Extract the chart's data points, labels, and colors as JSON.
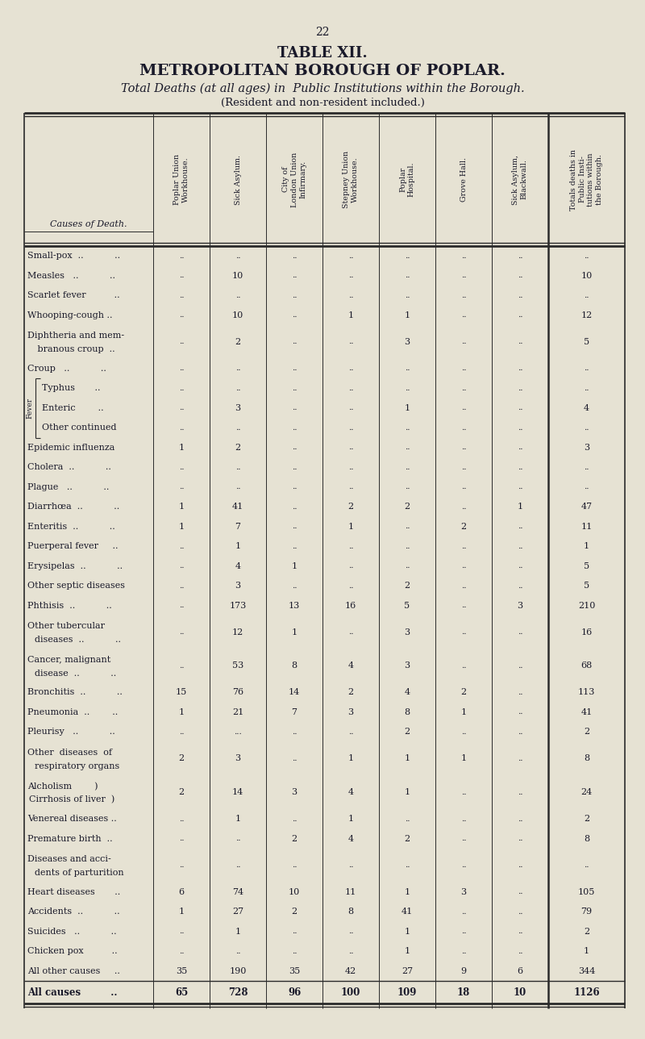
{
  "page_number": "22",
  "title1": "TABLE XII.",
  "title2": "METROPOLITAN BOROUGH OF POPLAR.",
  "title3": "Total Deaths (at all ages) in  Public Institutions within the Borough.",
  "title4": "(Resident and non-resident included.)",
  "col_headers": [
    "Poplar Union\nWorkhouse.",
    "Sick Asylum.",
    "City of\nLondon Union\nInfirmary.",
    "Stepney Union\nWorkhouse.",
    "Poplar\nHospital.",
    "Grove Hall.",
    "Sick Asylum,\nBlackwall.",
    "Totals deaths in\nPublic Insti-\ntutions within\nthe Borough."
  ],
  "row_label_col": "Causes of Death.",
  "rows": [
    {
      "label": "Small-pox  ..           ..",
      "label2": "",
      "values": [
        "..",
        "..",
        "..",
        "..",
        "..",
        "..",
        "..",
        ".."
      ]
    },
    {
      "label": "Measles   ..           ..",
      "label2": "",
      "values": [
        "..",
        "10",
        "..",
        "..",
        "..",
        "..",
        "..",
        "10"
      ]
    },
    {
      "label": "Scarlet fever          ..",
      "label2": "",
      "values": [
        "..",
        "..",
        "..",
        "..",
        "..",
        "..",
        "..",
        ".."
      ]
    },
    {
      "label": "Whooping-cough ..",
      "label2": "",
      "values": [
        "..",
        "10",
        "..",
        "1",
        "1",
        "..",
        "..",
        "12"
      ]
    },
    {
      "label": "Diphtheria and mem-",
      "label2": "   branous croup  ..",
      "values": [
        "..",
        "2",
        "..",
        "..",
        "3",
        "..",
        "..",
        "5"
      ],
      "tall": true
    },
    {
      "label": "Croup   ..           ..",
      "label2": "",
      "values": [
        "..",
        "..",
        "..",
        "..",
        "..",
        "..",
        "..",
        ".."
      ]
    },
    {
      "label": "Typhus       ..",
      "label2": "",
      "values": [
        "..",
        "..",
        "..",
        "..",
        "..",
        "..",
        "..",
        ".."
      ],
      "fever": true
    },
    {
      "label": "Enteric        ..",
      "label2": "",
      "values": [
        "..",
        "3",
        "..",
        "..",
        "1",
        "..",
        "..",
        "4"
      ],
      "fever": true
    },
    {
      "label": "Other continued",
      "label2": "",
      "values": [
        "..",
        "..",
        "..",
        "..",
        "..",
        "..",
        "..",
        ".."
      ],
      "fever": true
    },
    {
      "label": "Epidemic influenza",
      "label2": "",
      "values": [
        "1",
        "2",
        "..",
        "..",
        "..",
        "..",
        "..",
        "3"
      ]
    },
    {
      "label": "Cholera  ..           ..",
      "label2": "",
      "values": [
        "..",
        "..",
        "..",
        "..",
        "..",
        "..",
        "..",
        ".."
      ]
    },
    {
      "label": "Plague   ..           ..",
      "label2": "",
      "values": [
        "..",
        "..",
        "..",
        "..",
        "..",
        "..",
        "..",
        ".."
      ]
    },
    {
      "label": "Diarrhœa  ..           ..",
      "label2": "",
      "values": [
        "1",
        "41",
        "..",
        "2",
        "2",
        "..",
        "1",
        "47"
      ]
    },
    {
      "label": "Enteritis  ..           ..",
      "label2": "",
      "values": [
        "1",
        "7",
        "..",
        "1",
        "..",
        "2",
        "..",
        "11"
      ]
    },
    {
      "label": "Puerperal fever     ..",
      "label2": "",
      "values": [
        "..",
        "1",
        "..",
        "..",
        "..",
        "..",
        "..",
        "1"
      ]
    },
    {
      "label": "Erysipelas  ..           ..",
      "label2": "",
      "values": [
        "..",
        "4",
        "1",
        "..",
        "..",
        "..",
        "..",
        "5"
      ]
    },
    {
      "label": "Other septic diseases",
      "label2": "",
      "values": [
        "..",
        "3",
        "..",
        "..",
        "2",
        "..",
        "..",
        "5"
      ]
    },
    {
      "label": "Phthisis  ..           ..",
      "label2": "",
      "values": [
        "..",
        "173",
        "13",
        "16",
        "5",
        "..",
        "3",
        "210"
      ]
    },
    {
      "label": "Other tubercular",
      "label2": "  diseases  ..           ..",
      "values": [
        "..",
        "12",
        "1",
        "..",
        "3",
        "..",
        "..",
        "16"
      ],
      "tall": true
    },
    {
      "label": "Cancer, malignant",
      "label2": "  disease  ..           ..",
      "values": [
        "..",
        "53",
        "8",
        "4",
        "3",
        "..",
        "..",
        "68"
      ],
      "tall": true
    },
    {
      "label": "Bronchitis  ..           ..",
      "label2": "",
      "values": [
        "15",
        "76",
        "14",
        "2",
        "4",
        "2",
        "..",
        "113"
      ]
    },
    {
      "label": "Pneumonia  ..        ..",
      "label2": "",
      "values": [
        "1",
        "21",
        "7",
        "3",
        "8",
        "1",
        "..",
        "41"
      ]
    },
    {
      "label": "Pleurisy   ..           ..",
      "label2": "",
      "values": [
        "..",
        "...",
        "..",
        "..",
        "2",
        "..",
        "..",
        "2"
      ]
    },
    {
      "label": "Other  diseases  of",
      "label2": "  respiratory organs",
      "values": [
        "2",
        "3",
        "..",
        "1",
        "1",
        "1",
        "..",
        "8"
      ],
      "tall": true
    },
    {
      "label": "Alcholism        )",
      "label2": "Cirrhosis of liver  )",
      "values": [
        "2",
        "14",
        "3",
        "4",
        "1",
        "..",
        "..",
        "24"
      ],
      "tall": true
    },
    {
      "label": "Venereal diseases ..",
      "label2": "",
      "values": [
        "..",
        "1",
        "..",
        "1",
        "..",
        "..",
        "..",
        "2"
      ]
    },
    {
      "label": "Premature birth  ..",
      "label2": "",
      "values": [
        "..",
        "..",
        "2",
        "4",
        "2",
        "..",
        "..",
        "8"
      ]
    },
    {
      "label": "Diseases and acci-",
      "label2": "  dents of parturition",
      "values": [
        "..",
        "..",
        "..",
        "..",
        "..",
        "..",
        "..",
        ".."
      ],
      "tall": true
    },
    {
      "label": "Heart diseases       ..",
      "label2": "",
      "values": [
        "6",
        "74",
        "10",
        "11",
        "1",
        "3",
        "..",
        "105"
      ]
    },
    {
      "label": "Accidents  ..           ..",
      "label2": "",
      "values": [
        "1",
        "27",
        "2",
        "8",
        "41",
        "..",
        "..",
        "79"
      ]
    },
    {
      "label": "Suicides   ..           ..",
      "label2": "",
      "values": [
        "..",
        "1",
        "..",
        "..",
        "1",
        "..",
        "..",
        "2"
      ]
    },
    {
      "label": "Chicken pox          ..",
      "label2": "",
      "values": [
        "..",
        "..",
        "..",
        "..",
        "1",
        "..",
        "..",
        "1"
      ]
    },
    {
      "label": "All other causes     ..",
      "label2": "",
      "values": [
        "35",
        "190",
        "35",
        "42",
        "27",
        "9",
        "6",
        "344"
      ]
    }
  ],
  "total_row": {
    "label": "All causes         ..",
    "values": [
      "65",
      "728",
      "96",
      "100",
      "109",
      "18",
      "10",
      "1126"
    ]
  },
  "background_color": "#e6e2d3",
  "text_color": "#1a1a2a",
  "line_color": "#2a2a2a"
}
